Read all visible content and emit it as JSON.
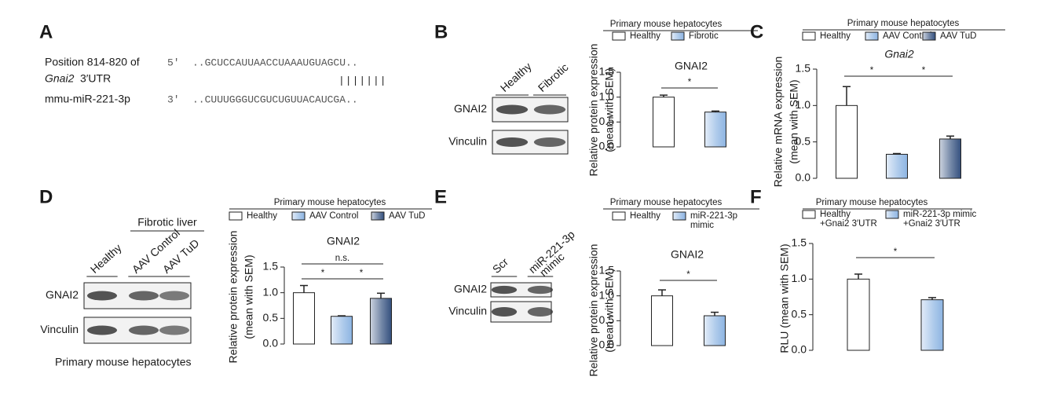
{
  "panel_labels": [
    "A",
    "B",
    "C",
    "D",
    "E",
    "F"
  ],
  "sequence": {
    "row1_label": "Position 814-820 of",
    "row1_end": "5′",
    "row1_seq": "..GCUCCAUUAACCUAAAUGUAGCU..",
    "row2_italic": "Gnai2",
    "row2_rest": "3′UTR",
    "pairing": "|||||||",
    "row3_label": "mmu-miR-221-3p",
    "row3_end": "3′",
    "row3_seq": "..CUUUGGGUCGUCUGUUACAUCGA.."
  },
  "blots": [
    {
      "lanes": [
        [
          "Healthy"
        ],
        [
          "Fibrotic"
        ]
      ],
      "rows": [
        "GNAI2",
        "Vinculin"
      ]
    },
    {
      "title": "Fibrotic liver",
      "lanes": [
        [
          "Healthy"
        ],
        [
          "AAV Control"
        ],
        [
          "AAV TuD"
        ]
      ],
      "rows": [
        "GNAI2",
        "Vinculin"
      ],
      "caption": "Primary mouse hepatocytes"
    },
    {
      "lanes": [
        [
          "Scr"
        ],
        [
          "miR-221-3p",
          "mimic"
        ]
      ],
      "rows": [
        "GNAI2",
        "Vinculin"
      ]
    }
  ],
  "chart_data": [
    {
      "type": "bar",
      "legend_title": "Primary mouse hepatocytes",
      "title": "GNAI2",
      "ylabel": [
        "Relative protein expression",
        "(mean with SEM)"
      ],
      "categories": [
        "Healthy",
        "Fibrotic"
      ],
      "values": [
        1.0,
        0.7
      ],
      "errors": [
        0.04,
        0.02
      ],
      "colors": [
        "#ffffff",
        "#8db4e2"
      ],
      "ylim": [
        0,
        1.5
      ],
      "yticks": [
        {
          "value": 0,
          "label": "0.0"
        },
        0.5,
        {
          "value": 1,
          "label": "1.0"
        },
        1.5
      ],
      "significance": [
        {
          "label": "*",
          "bars": [
            0,
            1
          ]
        }
      ]
    },
    {
      "type": "bar",
      "legend_title": "Primary mouse hepatocytes",
      "title": "Gnai2",
      "title_italic": true,
      "ylabel": [
        "Relative mRNA expression",
        "(mean with SEM)"
      ],
      "categories": [
        "Healthy",
        "AAV Control",
        "AAV TuD"
      ],
      "values": [
        1.0,
        0.33,
        0.54
      ],
      "errors": [
        0.26,
        0.01,
        0.04
      ],
      "colors": [
        "#ffffff",
        "#8db4e2",
        "#34507e"
      ],
      "ylim": [
        0,
        1.5
      ],
      "yticks": [
        {
          "value": 0,
          "label": "0.0"
        },
        0.5,
        {
          "value": 1,
          "label": "1.0"
        },
        1.5
      ],
      "significance": [
        {
          "label": "*",
          "bars": [
            0,
            1
          ]
        },
        {
          "label": "*",
          "bars": [
            1,
            2
          ]
        }
      ]
    },
    {
      "type": "bar",
      "legend_title": "Primary mouse hepatocytes",
      "title": "GNAI2",
      "ylabel": [
        "Relative protein expression",
        "(mean with SEM)"
      ],
      "categories": [
        "Healthy",
        "AAV Control",
        "AAV TuD"
      ],
      "values": [
        1.0,
        0.54,
        0.89
      ],
      "errors": [
        0.14,
        0.01,
        0.1
      ],
      "colors": [
        "#ffffff",
        "#8db4e2",
        "#34507e"
      ],
      "ylim": [
        0,
        1.5
      ],
      "yticks": [
        {
          "value": 0,
          "label": "0.0"
        },
        0.5,
        {
          "value": 1,
          "label": "1.0"
        },
        1.5
      ],
      "significance": [
        {
          "label": "n.s.",
          "bars": [
            0,
            2
          ]
        },
        {
          "label": "*",
          "bars": [
            0,
            1
          ]
        },
        {
          "label": "*",
          "bars": [
            1,
            2
          ]
        }
      ]
    },
    {
      "type": "bar",
      "legend_title": "Primary mouse hepatocytes",
      "title": "GNAI2",
      "ylabel": [
        "Relative protein expression",
        "(mean with SEM)"
      ],
      "categories": [
        "Healthy",
        [
          "miR-221-3p",
          "mimic"
        ]
      ],
      "values": [
        1.0,
        0.6
      ],
      "errors": [
        0.12,
        0.07
      ],
      "colors": [
        "#ffffff",
        "#8db4e2"
      ],
      "ylim": [
        0,
        1.5
      ],
      "yticks": [
        {
          "value": 0,
          "label": "0.0"
        },
        0.5,
        {
          "value": 1,
          "label": "1.0"
        },
        1.5
      ],
      "significance": [
        {
          "label": "*",
          "bars": [
            0,
            1
          ]
        }
      ]
    },
    {
      "type": "bar",
      "legend_title": "Primary mouse hepatocytes",
      "ylabel": [
        "RLU (mean with SEM)"
      ],
      "categories": [
        [
          "Healthy",
          "+Gnai2 3′UTR"
        ],
        [
          "miR-221-3p mimic",
          "+Gnai2 3′UTR"
        ]
      ],
      "values": [
        1.0,
        0.71
      ],
      "errors": [
        0.07,
        0.03
      ],
      "colors": [
        "#ffffff",
        "#8db4e2"
      ],
      "ylim": [
        0,
        1.5
      ],
      "yticks": [
        {
          "value": 0,
          "label": "0.0"
        },
        0.5,
        {
          "value": 1,
          "label": "1.0"
        },
        1.5
      ],
      "significance": [
        {
          "label": "*",
          "bars": [
            0,
            1
          ]
        }
      ]
    }
  ]
}
